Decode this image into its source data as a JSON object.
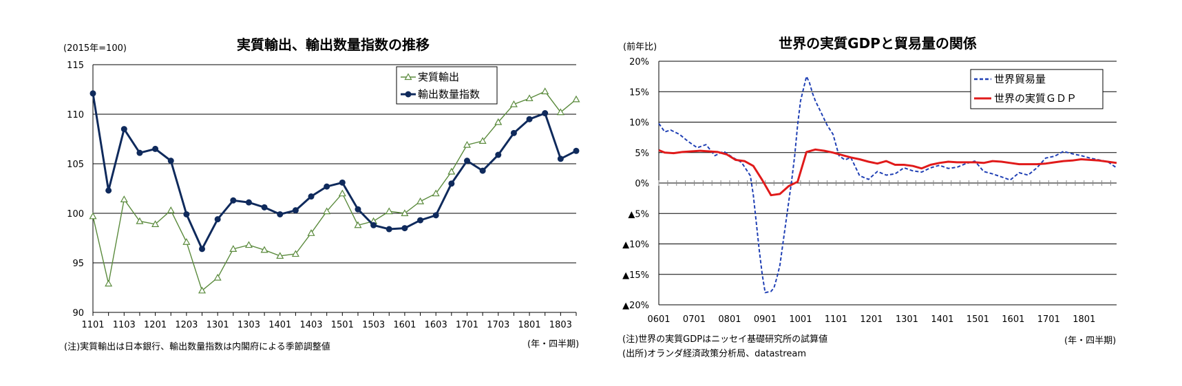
{
  "chart_data": [
    {
      "type": "line",
      "title": "実質輸出、輸出数量指数の推移",
      "unit_label": "(2015年=100)",
      "x_unit_label": "(年・四半期)",
      "note": "(注)実質輸出は日本銀行、輸出数量指数は内閣府による季節調整値",
      "ylim": [
        90,
        115
      ],
      "y_ticks": [
        "90",
        "95",
        "100",
        "105",
        "110",
        "115"
      ],
      "x_ticks": [
        "1101",
        "1103",
        "1201",
        "1203",
        "1301",
        "1303",
        "1401",
        "1403",
        "1501",
        "1503",
        "1601",
        "1603",
        "1701",
        "1703",
        "1801",
        "1803"
      ],
      "categories": [
        "1101",
        "1102",
        "1103",
        "1104",
        "1201",
        "1202",
        "1203",
        "1204",
        "1301",
        "1302",
        "1303",
        "1304",
        "1401",
        "1402",
        "1403",
        "1404",
        "1501",
        "1502",
        "1503",
        "1504",
        "1601",
        "1602",
        "1603",
        "1604",
        "1701",
        "1702",
        "1703",
        "1704",
        "1801",
        "1802",
        "1803",
        "1804"
      ],
      "legend_position": "top-right",
      "grid": true,
      "series": [
        {
          "name": "実質輸出",
          "color": "#5a8a3c",
          "marker": "triangle-open",
          "values": [
            99.7,
            92.9,
            101.4,
            99.2,
            98.9,
            100.3,
            97.1,
            92.2,
            93.5,
            96.4,
            96.8,
            96.3,
            95.7,
            95.9,
            98.0,
            100.2,
            102.0,
            98.8,
            99.2,
            100.2,
            100.0,
            101.2,
            102.0,
            104.2,
            106.9,
            107.3,
            109.2,
            111.0,
            111.6,
            112.3,
            110.2,
            111.5
          ]
        },
        {
          "name": "輸出数量指数",
          "color": "#0f2a5c",
          "marker": "circle-filled",
          "values": [
            112.1,
            102.3,
            108.5,
            106.1,
            106.5,
            105.3,
            99.9,
            96.4,
            99.4,
            101.3,
            101.1,
            100.6,
            99.9,
            100.3,
            101.7,
            102.7,
            103.1,
            100.4,
            98.8,
            98.4,
            98.5,
            99.3,
            99.8,
            103.0,
            105.3,
            104.3,
            105.9,
            108.1,
            109.5,
            110.1,
            105.5,
            106.3
          ]
        }
      ]
    },
    {
      "type": "line",
      "title": "世界の実質GDPと貿易量の関係",
      "unit_label": "(前年比)",
      "x_unit_label": "(年・四半期)",
      "notes": [
        "(注)世界の実質GDPはニッセイ基礎研究所の試算値",
        "(出所)オランダ経済政策分析局、datastream"
      ],
      "ylim": [
        -20,
        20
      ],
      "y_ticks": [
        "20%",
        "15%",
        "10%",
        "5%",
        "0%",
        "▲5%",
        "▲10%",
        "▲15%",
        "▲20%"
      ],
      "x_ticks": [
        "0601",
        "0701",
        "0801",
        "0901",
        "1001",
        "1101",
        "1201",
        "1301",
        "1401",
        "1501",
        "1601",
        "1701",
        "1801"
      ],
      "x_start": "2006-01",
      "x_end": "2018-12",
      "legend_position": "top-right",
      "grid": true,
      "series": [
        {
          "name": "世界貿易量",
          "color": "#1f3fb4",
          "style": "dashed",
          "x": [
            "2006-01",
            "2006-03",
            "2006-05",
            "2006-08",
            "2006-11",
            "2007-02",
            "2007-05",
            "2007-08",
            "2007-11",
            "2008-02",
            "2008-05",
            "2008-08",
            "2008-09",
            "2008-10",
            "2008-11",
            "2008-12",
            "2009-01",
            "2009-02",
            "2009-03",
            "2009-04",
            "2009-05",
            "2009-06",
            "2009-07",
            "2009-08",
            "2009-09",
            "2009-10",
            "2009-11",
            "2009-12",
            "2010-01",
            "2010-02",
            "2010-03",
            "2010-04",
            "2010-05",
            "2010-06",
            "2010-08",
            "2010-10",
            "2010-12",
            "2011-02",
            "2011-04",
            "2011-06",
            "2011-09",
            "2011-12",
            "2012-03",
            "2012-06",
            "2012-09",
            "2012-12",
            "2013-03",
            "2013-06",
            "2013-09",
            "2013-12",
            "2014-03",
            "2014-06",
            "2014-09",
            "2014-12",
            "2015-03",
            "2015-06",
            "2015-09",
            "2015-12",
            "2016-03",
            "2016-06",
            "2016-09",
            "2016-12",
            "2017-03",
            "2017-06",
            "2017-09",
            "2017-12",
            "2018-03",
            "2018-06",
            "2018-09",
            "2018-12"
          ],
          "values": [
            9.8,
            8.4,
            8.7,
            8.0,
            6.8,
            5.8,
            6.3,
            4.5,
            5.2,
            4.2,
            3.4,
            1.2,
            -2.0,
            -6.5,
            -11.0,
            -15.0,
            -18.0,
            -17.9,
            -17.8,
            -17.2,
            -15.5,
            -13.5,
            -10.0,
            -6.5,
            -3.0,
            0.5,
            4.5,
            9.5,
            13.5,
            15.5,
            17.5,
            16.5,
            14.8,
            13.5,
            11.5,
            9.5,
            8.0,
            4.5,
            3.8,
            4.2,
            1.2,
            0.6,
            1.9,
            1.3,
            1.5,
            2.5,
            2.0,
            1.8,
            2.5,
            2.9,
            2.4,
            2.6,
            3.2,
            3.6,
            1.9,
            1.5,
            1.0,
            0.5,
            1.7,
            1.3,
            2.5,
            4.1,
            4.4,
            5.2,
            4.8,
            4.5,
            4.1,
            3.8,
            3.5,
            2.5
          ]
        },
        {
          "name": "世界の実質ＧＤＰ",
          "color": "#e01a1a",
          "style": "solid",
          "x": [
            "2006-01",
            "2006-03",
            "2006-06",
            "2006-09",
            "2006-12",
            "2007-03",
            "2007-06",
            "2007-09",
            "2007-12",
            "2008-03",
            "2008-06",
            "2008-09",
            "2008-12",
            "2009-03",
            "2009-06",
            "2009-09",
            "2009-12",
            "2010-03",
            "2010-06",
            "2010-09",
            "2010-12",
            "2011-03",
            "2011-06",
            "2011-09",
            "2011-12",
            "2012-03",
            "2012-06",
            "2012-09",
            "2012-12",
            "2013-03",
            "2013-06",
            "2013-09",
            "2013-12",
            "2014-03",
            "2014-06",
            "2014-09",
            "2014-12",
            "2015-03",
            "2015-06",
            "2015-09",
            "2015-12",
            "2016-03",
            "2016-06",
            "2016-09",
            "2016-12",
            "2017-03",
            "2017-06",
            "2017-09",
            "2017-12",
            "2018-03",
            "2018-06",
            "2018-09",
            "2018-12"
          ],
          "values": [
            5.4,
            5.0,
            4.9,
            5.1,
            5.2,
            5.3,
            5.2,
            5.1,
            4.7,
            3.8,
            3.6,
            2.8,
            0.5,
            -2.0,
            -1.8,
            -0.5,
            0.2,
            5.1,
            5.5,
            5.3,
            5.0,
            4.6,
            4.2,
            3.9,
            3.5,
            3.2,
            3.6,
            3.0,
            3.0,
            2.8,
            2.4,
            3.0,
            3.3,
            3.5,
            3.4,
            3.4,
            3.4,
            3.3,
            3.6,
            3.5,
            3.3,
            3.1,
            3.1,
            3.1,
            3.2,
            3.4,
            3.6,
            3.7,
            3.9,
            3.8,
            3.7,
            3.5,
            3.3
          ]
        }
      ]
    }
  ]
}
